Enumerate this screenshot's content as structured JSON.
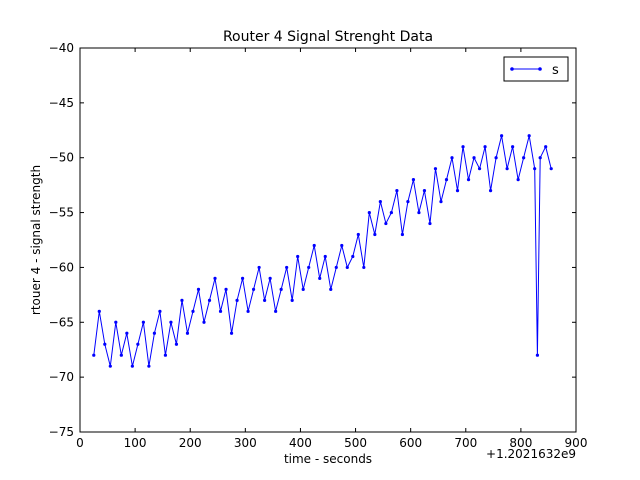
{
  "chart_data": {
    "type": "line",
    "title": "Router 4 Signal Strenght Data",
    "xlabel": "time - seconds",
    "ylabel": "rtouer 4 - signal strength",
    "x_offset_label": "+1.2021632e9",
    "xlim": [
      0,
      900
    ],
    "ylim": [
      -75,
      -40
    ],
    "xticks": [
      0,
      100,
      200,
      300,
      400,
      500,
      600,
      700,
      800,
      900
    ],
    "yticks": [
      -75,
      -70,
      -65,
      -60,
      -55,
      -50,
      -45,
      -40
    ],
    "grid": false,
    "legend_position": "top-right",
    "color": "#0000ff",
    "series": [
      {
        "name": "s",
        "x": [
          25,
          35,
          45,
          55,
          65,
          75,
          85,
          95,
          105,
          115,
          125,
          135,
          145,
          155,
          165,
          175,
          185,
          195,
          205,
          215,
          225,
          235,
          245,
          255,
          265,
          275,
          285,
          295,
          305,
          315,
          325,
          335,
          345,
          355,
          365,
          375,
          385,
          395,
          405,
          415,
          425,
          435,
          445,
          455,
          465,
          475,
          485,
          495,
          505,
          515,
          525,
          535,
          545,
          555,
          565,
          575,
          585,
          595,
          605,
          615,
          625,
          635,
          645,
          655,
          665,
          675,
          685,
          695,
          705,
          715,
          725,
          735,
          745,
          755,
          765,
          775,
          785,
          795,
          805,
          815,
          825,
          830,
          835,
          845,
          855
        ],
        "y": [
          -68,
          -64,
          -67,
          -69,
          -65,
          -68,
          -66,
          -69,
          -67,
          -65,
          -69,
          -66,
          -64,
          -68,
          -65,
          -67,
          -63,
          -66,
          -64,
          -62,
          -65,
          -63,
          -61,
          -64,
          -62,
          -66,
          -63,
          -61,
          -64,
          -62,
          -60,
          -63,
          -61,
          -64,
          -62,
          -60,
          -63,
          -59,
          -62,
          -60,
          -58,
          -61,
          -59,
          -62,
          -60,
          -58,
          -60,
          -59,
          -57,
          -60,
          -55,
          -57,
          -54,
          -56,
          -55,
          -53,
          -57,
          -54,
          -52,
          -55,
          -53,
          -56,
          -51,
          -54,
          -52,
          -50,
          -53,
          -49,
          -52,
          -50,
          -51,
          -49,
          -53,
          -50,
          -48,
          -51,
          -49,
          -52,
          -50,
          -48,
          -51,
          -68,
          -50,
          -49,
          -51
        ]
      }
    ]
  }
}
